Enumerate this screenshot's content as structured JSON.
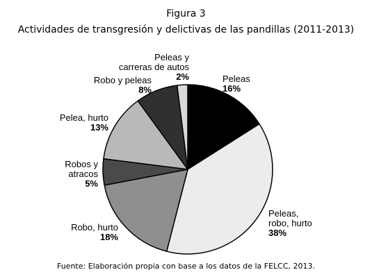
{
  "figure": {
    "number": "Figura 3",
    "title": "Actividades de transgresión y delictivas de las pandillas (2011-2013)",
    "source": "Fuente: Elaboración propia con base a los datos de la FELCC, 2013."
  },
  "chart_data": {
    "type": "pie",
    "title": "Actividades de transgresión y delictivas de las pandillas (2011-2013)",
    "unit": "%",
    "slices": [
      {
        "label": [
          "Peleas"
        ],
        "value": 16,
        "value_label": "16%",
        "color": "#000000"
      },
      {
        "label": [
          "Peleas,",
          "robo, hurto"
        ],
        "value": 38,
        "value_label": "38%",
        "color": "#ececec"
      },
      {
        "label": [
          "Robo, hurto"
        ],
        "value": 18,
        "value_label": "18%",
        "color": "#8f8f8f"
      },
      {
        "label": [
          "Robos y",
          "atracos"
        ],
        "value": 5,
        "value_label": "5%",
        "color": "#4a4a4a"
      },
      {
        "label": [
          "Pelea, hurto"
        ],
        "value": 13,
        "value_label": "13%",
        "color": "#b9b9b9"
      },
      {
        "label": [
          "Robo y peleas"
        ],
        "value": 8,
        "value_label": "8%",
        "color": "#303030"
      },
      {
        "label": [
          "Peleas y",
          "carreras de autos"
        ],
        "value": 2,
        "value_label": "2%",
        "color": "#d8d8d8"
      }
    ]
  }
}
